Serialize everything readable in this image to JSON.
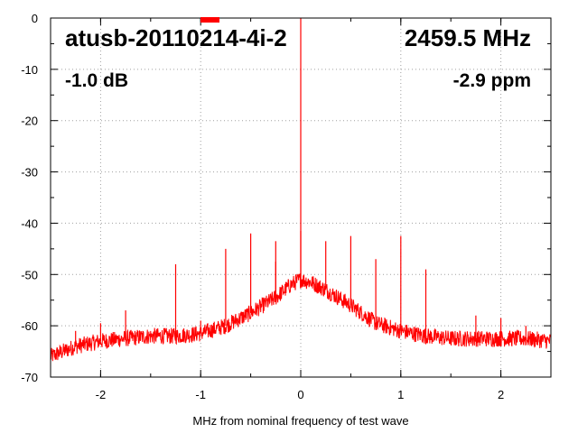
{
  "chart_data": {
    "type": "line",
    "title": "atusb-20110214-4i-2",
    "frequency_label": "2459.5 MHz",
    "gain_label": "-1.0 dB",
    "offset_label": "-2.9 ppm",
    "xlabel": "MHz from nominal frequency of test wave",
    "ylabel": "",
    "xlim": [
      -2.5,
      2.5
    ],
    "ylim": [
      -70,
      0
    ],
    "x_ticks": [
      -2,
      -1,
      0,
      1,
      2
    ],
    "y_ticks": [
      0,
      -10,
      -20,
      -30,
      -40,
      -50,
      -60,
      -70
    ],
    "grid": true,
    "line_color": "#ff0000",
    "series": [
      {
        "noise_floor": {
          "x": [
            -2.5,
            -2.25,
            -2.0,
            -1.75,
            -1.5,
            -1.25,
            -1.0,
            -0.75,
            -0.5,
            -0.25,
            -0.1,
            0.0,
            0.1,
            0.25,
            0.5,
            0.75,
            1.0,
            1.25,
            1.5,
            1.75,
            2.0,
            2.25,
            2.5
          ],
          "y": [
            -66,
            -64,
            -63,
            -62.5,
            -62,
            -62,
            -61.5,
            -60,
            -57.5,
            -54.5,
            -52,
            -51,
            -51.5,
            -53,
            -56,
            -59.5,
            -61,
            -62,
            -62.5,
            -62.5,
            -62.5,
            -62.5,
            -63
          ]
        },
        "spurs": [
          {
            "x": 0.0,
            "y": 0
          },
          {
            "x": 0.0,
            "y": -41.5
          },
          {
            "x": -0.5,
            "y": -42
          },
          {
            "x": -0.25,
            "y": -43.5
          },
          {
            "x": -0.25,
            "y": -47.5
          },
          {
            "x": -0.75,
            "y": -45
          },
          {
            "x": -1.25,
            "y": -48
          },
          {
            "x": -1.75,
            "y": -57
          },
          {
            "x": -2.0,
            "y": -59.5
          },
          {
            "x": -2.25,
            "y": -61
          },
          {
            "x": -1.0,
            "y": -59
          },
          {
            "x": 0.25,
            "y": -43.5
          },
          {
            "x": 0.5,
            "y": -42.5
          },
          {
            "x": 0.75,
            "y": -47
          },
          {
            "x": 1.0,
            "y": -42.5
          },
          {
            "x": 1.25,
            "y": -49
          },
          {
            "x": 1.75,
            "y": -58
          },
          {
            "x": 2.0,
            "y": -58.5
          },
          {
            "x": 2.25,
            "y": -60
          }
        ]
      }
    ]
  }
}
